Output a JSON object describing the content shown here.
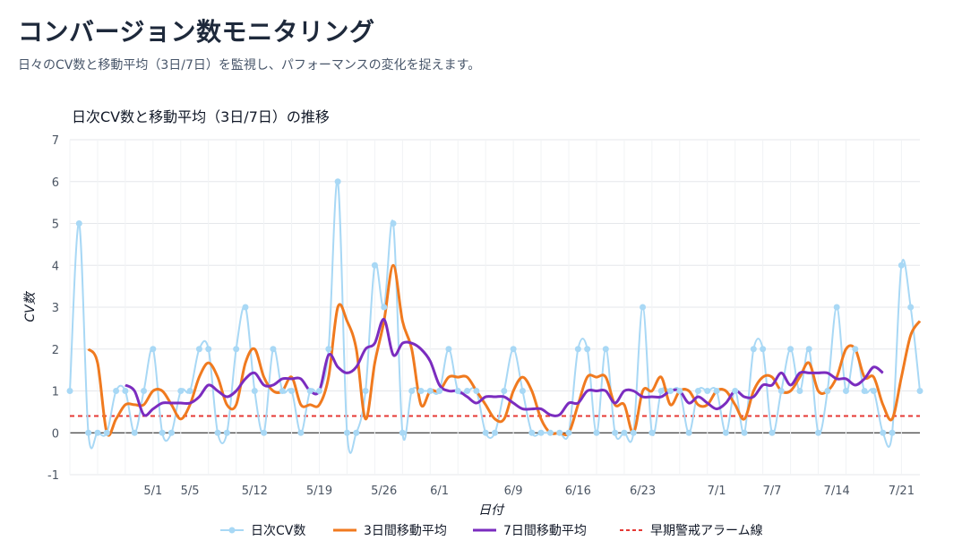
{
  "page": {
    "title": "コンバージョン数モニタリング",
    "subtitle": "日々のCV数と移動平均（3日/7日）を監視し、パフォーマンスの変化を捉えます。"
  },
  "colors": {
    "daily": "#a8d8f5",
    "ma3": "#f07a1f",
    "ma7": "#7b2cbf",
    "alarm": "#e53935",
    "zero_line": "#111111",
    "grid": "#e5e7eb"
  },
  "chart_data": {
    "type": "line",
    "title": "日次CV数と移動平均（3日/7日）の推移",
    "xlabel": "日付",
    "ylabel": "CV数",
    "ylim": [
      -1,
      7
    ],
    "yticks": [
      -1,
      0,
      1,
      2,
      3,
      4,
      5,
      6,
      7
    ],
    "grid": true,
    "legend_position": "bottom",
    "x_start": "4/22",
    "x_end": "7/26",
    "x_tick_labels": [
      {
        "day": 9,
        "label": "5/1"
      },
      {
        "day": 13,
        "label": "5/5"
      },
      {
        "day": 20,
        "label": "5/12"
      },
      {
        "day": 27,
        "label": "5/19"
      },
      {
        "day": 34,
        "label": "5/26"
      },
      {
        "day": 40,
        "label": "6/1"
      },
      {
        "day": 48,
        "label": "6/9"
      },
      {
        "day": 55,
        "label": "6/16"
      },
      {
        "day": 62,
        "label": "6/23"
      },
      {
        "day": 70,
        "label": "7/1"
      },
      {
        "day": 76,
        "label": "7/7"
      },
      {
        "day": 83,
        "label": "7/14"
      },
      {
        "day": 90,
        "label": "7/21"
      }
    ],
    "series": [
      {
        "name": "日次CV数",
        "key": "daily",
        "style": "smooth-line-markers",
        "values": [
          1,
          5,
          0,
          0,
          0,
          1,
          1,
          0,
          1,
          2,
          0,
          0,
          1,
          1,
          2,
          2,
          0,
          0,
          2,
          3,
          1,
          0,
          2,
          1,
          1,
          0,
          1,
          1,
          2,
          6,
          0,
          0,
          1,
          4,
          3,
          5,
          0,
          1,
          1,
          1,
          1,
          2,
          1,
          1,
          1,
          0,
          0,
          1,
          2,
          1,
          0,
          0,
          0,
          0,
          0,
          2,
          2,
          0,
          2,
          0,
          0,
          0,
          3,
          0,
          1,
          1,
          1,
          0,
          1,
          1,
          1,
          0,
          1,
          0,
          2,
          2,
          0,
          1,
          2,
          1,
          2,
          0,
          1,
          3,
          1,
          2,
          1,
          1,
          0,
          0,
          4,
          3,
          1
        ]
      },
      {
        "name": "3日間移動平均",
        "key": "ma3",
        "style": "smooth-line",
        "start_index": 2,
        "values": [
          2,
          1.67,
          0,
          0.33,
          0.67,
          0.67,
          0.67,
          1,
          1,
          0.67,
          0.33,
          0.67,
          1.33,
          1.67,
          1.33,
          0.67,
          0.67,
          1.67,
          2,
          1.33,
          1,
          1,
          1.33,
          0.67,
          0.67,
          0.67,
          1.33,
          3,
          2.67,
          2,
          0.33,
          1.67,
          2.67,
          4,
          2.67,
          2,
          0.67,
          1,
          1,
          1.33,
          1.33,
          1.33,
          1,
          0.67,
          0.33,
          0.33,
          1,
          1.33,
          1,
          0.33,
          0,
          0,
          0,
          0.67,
          1.33,
          1.33,
          1.33,
          0.67,
          0.67,
          0,
          1,
          1,
          1.33,
          0.67,
          1,
          1,
          0.67,
          0.67,
          1,
          1,
          0.67,
          0.33,
          1,
          1.33,
          1.33,
          1,
          1,
          1.33,
          1.67,
          1,
          1,
          1.33,
          2,
          2,
          1.33,
          1.33,
          0.67,
          0.33,
          1.33,
          2.33,
          2.67
        ]
      },
      {
        "name": "7日間移動平均",
        "key": "ma7",
        "style": "smooth-line",
        "start_index": 6,
        "values": [
          1.14,
          1,
          0.43,
          0.57,
          0.71,
          0.71,
          0.71,
          0.71,
          0.86,
          1.14,
          1,
          0.86,
          1,
          1.29,
          1.43,
          1.14,
          1.14,
          1.29,
          1.29,
          1.29,
          1,
          1,
          1.86,
          1.57,
          1.43,
          1.57,
          2,
          2.14,
          2.71,
          1.86,
          2.14,
          2.14,
          2,
          1.71,
          1.14,
          1,
          1,
          0.86,
          0.71,
          0.86,
          0.86,
          0.86,
          0.71,
          0.57,
          0.57,
          0.57,
          0.43,
          0.43,
          0.71,
          0.71,
          1,
          1,
          1,
          0.71,
          1,
          1,
          0.86,
          0.86,
          0.86,
          1,
          1,
          0.71,
          0.86,
          0.71,
          0.57,
          0.71,
          1,
          0.86,
          0.86,
          1.14,
          1.14,
          1.43,
          1.14,
          1.43,
          1.43,
          1.43,
          1.43,
          1.29,
          1.29,
          1.14,
          1.29,
          1.57,
          1.43
        ]
      },
      {
        "name": "早期警戒アラーム線",
        "key": "alarm",
        "style": "dashed",
        "values": [
          0.4,
          0.4
        ]
      }
    ]
  }
}
